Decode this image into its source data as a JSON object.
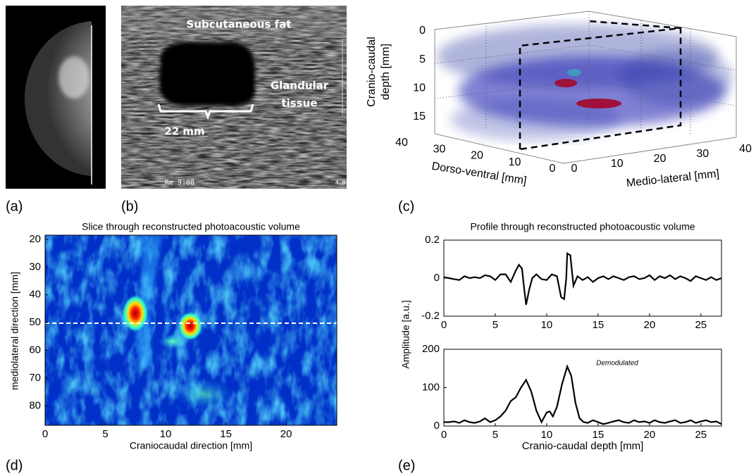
{
  "panel_labels": [
    "(a)",
    "(b)",
    "(c)",
    "(d)",
    "(e)"
  ],
  "ultrasound": {
    "labels": [
      "Subcutaneous fat",
      "Glandular",
      "tissue",
      "22 mm"
    ],
    "overlay": [
      "Re 9:08",
      "4.0-"
    ]
  },
  "volume_3d": {
    "z_label": [
      "Cranio-caudal",
      "depth [mm]"
    ],
    "dv_label": "Dorso-ventral [mm]",
    "ml_label": "Medio-lateral [mm]",
    "z_ticks": [
      0,
      5,
      10,
      15
    ],
    "dv_ticks": [
      40,
      30,
      20,
      10,
      0
    ],
    "ml_ticks": [
      0,
      10,
      20,
      30,
      40
    ]
  },
  "chart_data": [
    {
      "type": "heatmap",
      "title": "Slice through reconstructed photoacoustic volume",
      "xlabel": "Craniocaudal direction [mm]",
      "ylabel": "mediolateral direction [mm]",
      "xlim": [
        0,
        24.2
      ],
      "ylim": [
        18.5,
        87
      ],
      "y_reversed": true,
      "xticks": [
        0,
        5,
        10,
        15,
        20
      ],
      "yticks": [
        20,
        30,
        40,
        50,
        60,
        70,
        80
      ]
    },
    {
      "type": "line",
      "title": "Profile through reconstructed photoacoustic volume",
      "ylabel": "Amplitude [a.u.]",
      "xlim": [
        0,
        27
      ],
      "ylim": [
        -0.2,
        0.2
      ],
      "xticks": [
        0,
        5,
        10,
        15,
        20,
        25
      ],
      "yticks": [
        -0.2,
        0,
        0.2
      ],
      "series": [
        {
          "color": "#000000",
          "x": [
            0,
            0.5,
            1,
            1.5,
            2,
            2.5,
            3,
            3.5,
            4,
            4.5,
            5,
            5.5,
            6,
            6.5,
            7,
            7.3,
            7.6,
            7.8,
            8,
            8.3,
            8.6,
            9,
            9.5,
            10,
            10.5,
            11,
            11.4,
            11.7,
            11.9,
            12,
            12.3,
            12.6,
            13,
            13.5,
            14,
            14.5,
            15,
            15.5,
            16,
            16.5,
            17,
            17.5,
            18,
            18.5,
            19,
            19.5,
            20,
            20.5,
            21,
            21.5,
            22,
            22.5,
            23,
            23.5,
            24,
            24.5,
            25,
            25.5,
            26,
            26.5,
            27
          ],
          "values": [
            0.005,
            0,
            -0.005,
            -0.01,
            0.01,
            0,
            0.005,
            0,
            0.015,
            0.01,
            -0.01,
            0.02,
            0.02,
            -0.02,
            0.04,
            0.07,
            0.05,
            -0.05,
            -0.14,
            -0.06,
            0,
            0.02,
            -0.005,
            -0.01,
            0.02,
            0.01,
            -0.1,
            -0.11,
            0,
            0.13,
            0.12,
            -0.04,
            0.01,
            -0.01,
            0.005,
            -0.02,
            0,
            0.01,
            -0.005,
            0.01,
            0,
            -0.01,
            0.005,
            0.01,
            -0.005,
            0,
            0.015,
            -0.01,
            0.01,
            0,
            0.015,
            -0.005,
            0.01,
            0,
            -0.015,
            0.01,
            0,
            -0.01,
            0.005,
            -0.01,
            0
          ]
        }
      ]
    },
    {
      "type": "line",
      "xlabel": "Cranio-caudal depth [mm]",
      "annotation": "Demodulated",
      "xlim": [
        0,
        27
      ],
      "ylim": [
        0,
        200
      ],
      "xticks": [
        0,
        5,
        10,
        15,
        20,
        25
      ],
      "yticks": [
        0,
        100,
        200
      ],
      "series": [
        {
          "color": "#000000",
          "x": [
            0,
            0.5,
            1,
            1.5,
            2,
            2.5,
            3,
            3.5,
            4,
            4.5,
            5,
            5.5,
            6,
            6.5,
            7,
            7.5,
            8,
            8.5,
            9,
            9.5,
            10,
            10.3,
            10.6,
            11,
            11.5,
            12,
            12.4,
            12.8,
            13.2,
            13.6,
            14,
            14.5,
            15,
            15.5,
            16,
            16.5,
            17,
            17.5,
            18,
            18.5,
            19,
            19.5,
            20,
            20.5,
            21,
            21.5,
            22,
            22.5,
            23,
            23.5,
            24,
            24.5,
            25,
            25.5,
            26,
            26.5,
            27
          ],
          "values": [
            10,
            10,
            12,
            8,
            15,
            10,
            8,
            12,
            20,
            10,
            15,
            25,
            40,
            65,
            75,
            100,
            120,
            90,
            40,
            10,
            35,
            38,
            25,
            50,
            110,
            155,
            130,
            60,
            20,
            10,
            8,
            15,
            10,
            5,
            8,
            12,
            15,
            10,
            8,
            15,
            10,
            12,
            8,
            15,
            10,
            8,
            12,
            15,
            8,
            10,
            15,
            8,
            12,
            15,
            10,
            12,
            5
          ]
        }
      ]
    }
  ]
}
